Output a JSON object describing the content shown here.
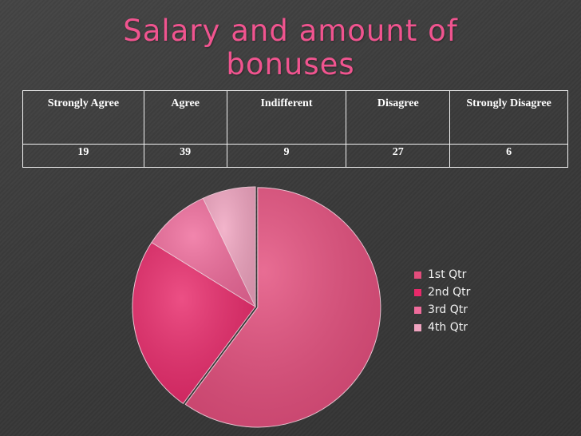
{
  "title": {
    "line1": "Salary and amount of",
    "line2": "bonuses"
  },
  "table": {
    "headers": [
      "Strongly Agree",
      "Agree",
      "Indifferent",
      "Disagree",
      "Strongly Disagree"
    ],
    "values": [
      "19",
      "39",
      "9",
      "27",
      "6"
    ]
  },
  "chart_data": {
    "type": "pie",
    "categories": [
      "1st Qtr",
      "2nd Qtr",
      "3rd Qtr",
      "4th Qtr"
    ],
    "values": [
      60,
      24,
      9,
      7
    ],
    "colors": [
      "#e34d7c",
      "#e8296a",
      "#ef6b9b",
      "#f0a4c0"
    ],
    "legend": "right"
  }
}
